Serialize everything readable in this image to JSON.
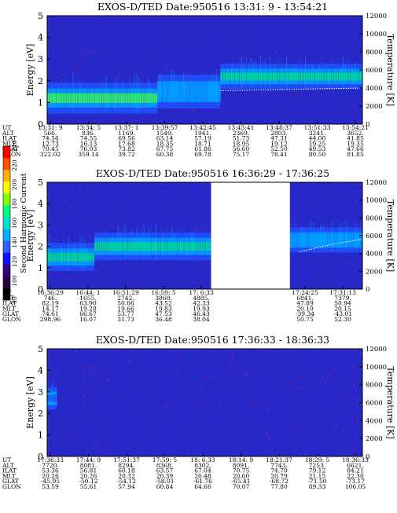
{
  "chart_data": [
    {
      "type": "heatmap",
      "title": "EXOS-D/TED   Date:950516  13:31: 9 - 13:54:21",
      "ylabel": "Energy [eV]",
      "y2label": "Temperature [K]",
      "ylim": [
        0,
        5
      ],
      "y2lim": [
        0,
        12000
      ],
      "yticks": [
        "0",
        "1",
        "2",
        "3",
        "4",
        "5"
      ],
      "y2ticks": [
        "0",
        "2000",
        "4000",
        "6000",
        "8000",
        "10000",
        "12000"
      ],
      "gaps": [],
      "bands": [
        {
          "t0": 0.0,
          "t1": 0.35,
          "e": 1.2,
          "w": 0.55,
          "level": 0.75
        },
        {
          "t0": 0.35,
          "t1": 0.55,
          "e": 1.5,
          "w": 0.6,
          "level": 0.55
        },
        {
          "t0": 0.55,
          "t1": 1.0,
          "e": 2.2,
          "w": 0.45,
          "level": 0.7
        }
      ],
      "temperature_curve": {
        "t": [
          0.55,
          0.7,
          0.85,
          1.0
        ],
        "k": [
          3700,
          3800,
          3900,
          4000
        ]
      },
      "row_labels": [
        "UT",
        "ALT",
        "ILAT",
        "MLT",
        "GLAT",
        "GLON"
      ],
      "columns": [
        [
          "13:31: 9",
          "566.",
          "74.56",
          "12.73",
          "70.45",
          "322.02"
        ],
        [
          "13:34: 5",
          "836.",
          "74.55",
          "16.13",
          "76.03",
          "359.14"
        ],
        [
          "13:37: 1",
          "1169.",
          "69.56",
          "17.68",
          "73.82",
          "39.72"
        ],
        [
          "13:39:57",
          "1549.",
          "63.14",
          "18.35",
          "67.75",
          "60.38"
        ],
        [
          "13:42:45",
          "1941.",
          "57.19",
          "18.71",
          "61.86",
          "69.78"
        ],
        [
          "13:45:41",
          "2369.",
          "51.73",
          "18.95",
          "56.60",
          "75.17"
        ],
        [
          "13:48:37",
          "2803.",
          "47.31",
          "19.12",
          "52.50",
          "78.41"
        ],
        [
          "13:51:33",
          "3241.",
          "44.00",
          "19.25",
          "49.53",
          "80.50"
        ],
        [
          "13:54:21",
          "3652.",
          "41.85",
          "19.35",
          "47.66",
          "81.85"
        ]
      ]
    },
    {
      "type": "heatmap",
      "title": "EXOS-D/TED   Date:950516  16:36:29 - 17:36:25",
      "ylabel": "Energy [eV]",
      "y2label": "Temperature [K]",
      "ylim": [
        0,
        5
      ],
      "y2lim": [
        0,
        12000
      ],
      "yticks": [
        "0",
        "1",
        "2",
        "3",
        "4",
        "5"
      ],
      "y2ticks": [
        "0",
        "2000",
        "4000",
        "6000",
        "8000",
        "10000",
        "12000"
      ],
      "gaps": [
        [
          0.52,
          0.77
        ]
      ],
      "bands": [
        {
          "t0": 0.0,
          "t1": 0.15,
          "e": 1.5,
          "w": 0.5,
          "level": 0.65
        },
        {
          "t0": 0.15,
          "t1": 0.52,
          "e": 2.0,
          "w": 0.5,
          "level": 0.7
        },
        {
          "t0": 0.77,
          "t1": 1.0,
          "e": 2.3,
          "w": 0.45,
          "level": 0.55
        }
      ],
      "temperature_curve": {
        "t": [
          0.8,
          0.9,
          1.0
        ],
        "k": [
          4200,
          5000,
          5600
        ]
      },
      "row_labels": [
        "UT",
        "ALT",
        "ILAT",
        "MLT",
        "GLAT",
        "GLON"
      ],
      "columns": [
        [
          "16:36:29",
          "746.",
          "82.19",
          "14.17",
          "74.61",
          "298.96"
        ],
        [
          "16:44: 1",
          "1655.",
          "63.90",
          "19.28",
          "66.67",
          "16.07"
        ],
        [
          "16:51:29",
          "2742.",
          "50.06",
          "19.66",
          "53.77",
          "31.73"
        ],
        [
          "16:59: 5",
          "3860.",
          "43.52",
          "19.83",
          "47.53",
          "36.48"
        ],
        [
          "17: 6:33",
          "4885.",
          "42.33",
          "19.93",
          "46.43",
          "38.04"
        ],
        [
          "17:24:25",
          "6841.",
          "47.89",
          "20.10",
          "-39.34",
          "50.75"
        ],
        [
          "17:31:13",
          "7379.",
          "50.94",
          "20.15",
          "-43.01",
          "52.30"
        ]
      ]
    },
    {
      "type": "heatmap",
      "title": "EXOS-D/TED   Date:950516  17:36:33 - 18:36:33",
      "ylabel": "Energy [eV]",
      "y2label": "Temperature [K]",
      "ylim": [
        0,
        5
      ],
      "y2lim": [
        0,
        12000
      ],
      "yticks": [
        "0",
        "1",
        "2",
        "3",
        "4",
        "5"
      ],
      "y2ticks": [
        "0",
        "2000",
        "4000",
        "6000",
        "8000",
        "10000",
        "12000"
      ],
      "gaps": [],
      "bands": [
        {
          "t0": 0.0,
          "t1": 0.03,
          "e": 2.7,
          "w": 0.4,
          "level": 0.35
        }
      ],
      "temperature_curve": {
        "t": [],
        "k": []
      },
      "row_labels": [
        "UT",
        "ALT",
        "ILAT",
        "MLT",
        "GLAT",
        "GLON"
      ],
      "columns": [
        [
          "17:36:33",
          "7720.",
          "53.36",
          "20.26",
          "-45.95",
          "53.59"
        ],
        [
          "17:44: 9",
          "8081.",
          "56.81",
          "20.26",
          "-50.12",
          "55.61"
        ],
        [
          "17:51:37",
          "8294.",
          "60.18",
          "20.32",
          "-54.12",
          "57.94"
        ],
        [
          "17:59: 5",
          "8368.",
          "63.57",
          "20.39",
          "-58.01",
          "60.84"
        ],
        [
          "18: 6:33",
          "8302.",
          "67.04",
          "20.48",
          "-61.76",
          "64.66"
        ],
        [
          "18:14: 9",
          "8091.",
          "70.75",
          "20.60",
          "-65.41",
          "70.07"
        ],
        [
          "18:21:37",
          "7743.",
          "74.70",
          "20.79",
          "-68.72",
          "77.80"
        ],
        [
          "18:29: 5",
          "7253.",
          "79.12",
          "21.15",
          "-71.50",
          "89.33"
        ],
        [
          "18:36:33",
          "6621.",
          "84.21",
          "22.30",
          "-73.17",
          "106.05"
        ]
      ]
    }
  ],
  "colorbar": {
    "label": "Second Harmonic Current",
    "ticks": [
      "80",
      "100",
      "120",
      "140",
      "160",
      "180",
      "200",
      "220",
      "240"
    ],
    "colors": [
      "#000000",
      "#2a0040",
      "#3a0080",
      "#1010ff",
      "#3060ff",
      "#00b0ff",
      "#00e0d0",
      "#00ff80",
      "#80ff00",
      "#ffff00",
      "#ffb000",
      "#ff5000",
      "#ff0000"
    ]
  },
  "colors": {
    "background": "#2828c8",
    "band_low": "#2050ff",
    "band_mid": "#00a0ff",
    "band_high": "#00e080",
    "band_peak": "#40ff40",
    "speckle": "#ff2020",
    "temperature_curve": "#ffffff"
  }
}
